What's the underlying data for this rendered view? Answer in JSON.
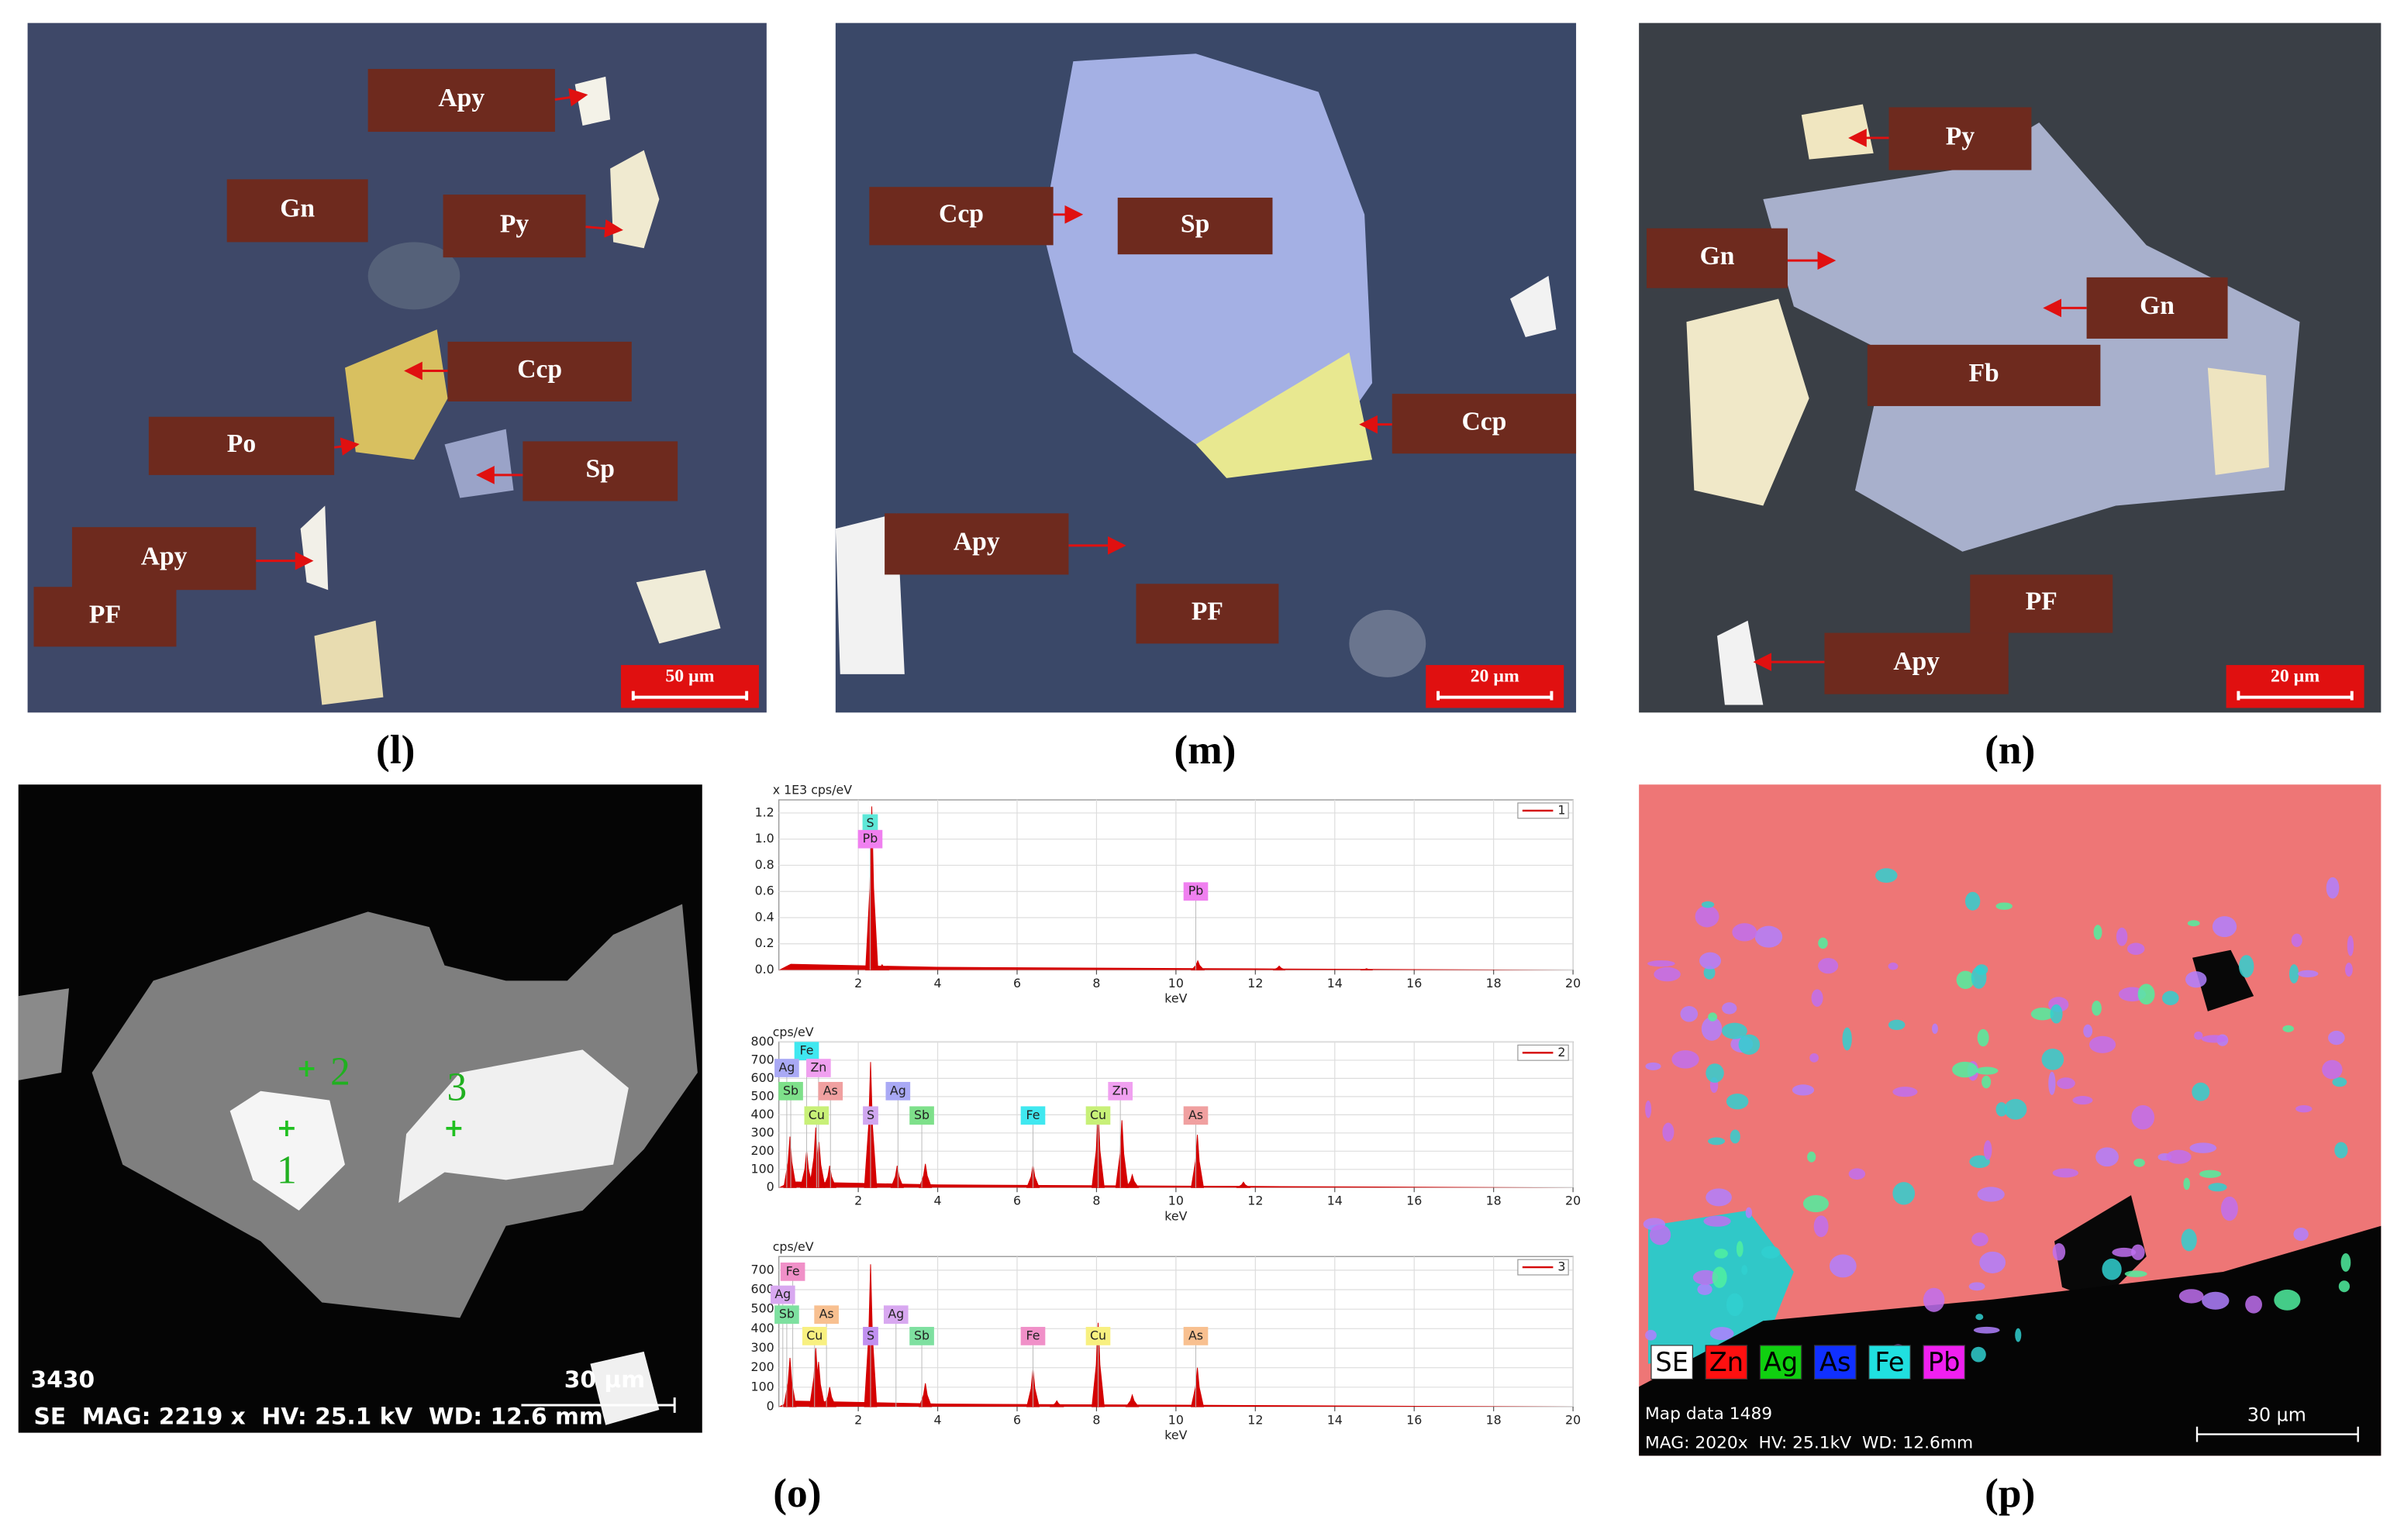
{
  "panels": [
    {
      "caption": "(l)",
      "labels": [
        "Apy",
        "Gn",
        "Py",
        "Ccp",
        "Po",
        "Sp",
        "Apy",
        "PF"
      ],
      "scale_bar": "50 µm"
    },
    {
      "caption": "(m)",
      "labels": [
        "Ccp",
        "Sp",
        "Ccp",
        "Apy",
        "PF"
      ],
      "scale_bar": "20 µm"
    },
    {
      "caption": "(n)",
      "labels": [
        "Py",
        "Gn",
        "Gn",
        "Fb",
        "PF",
        "Apy"
      ],
      "scale_bar": "20 µm"
    }
  ],
  "sem": {
    "caption": "(o)",
    "points": [
      "1",
      "2",
      "3"
    ],
    "id": "3430",
    "scale_bar": "30 µm",
    "info": "SE  MAG: 2219 x  HV: 25.1 kV  WD: 12.6 mm"
  },
  "chart_data": [
    {
      "type": "spectrum",
      "y_unit": "x 1E3 cps/eV",
      "xlabel": "keV",
      "legend": "1",
      "color": "#d40000",
      "x": [
        2.34,
        2.6,
        10.55,
        12.6,
        14.8
      ],
      "values": [
        1.25,
        0.04,
        0.07,
        0.03,
        0.01
      ],
      "xlim": [
        0,
        20
      ],
      "xticks": [
        2,
        4,
        6,
        8,
        10,
        12,
        14,
        16,
        18,
        20
      ],
      "ylim": [
        0,
        1.3
      ],
      "yticks": [
        {
          "value": 0,
          "label": "0.0"
        },
        0.2,
        0.4,
        0.6,
        0.8,
        {
          "value": 1,
          "label": "1.0"
        },
        1.2
      ],
      "grid": true,
      "peak_labels": [
        {
          "text": "S",
          "x": 2.3,
          "y": 1.12,
          "color": "#5ee8d8"
        },
        {
          "text": "Pb",
          "x": 2.3,
          "y": 1.0,
          "color": "#f080f0"
        },
        {
          "text": "Pb",
          "x": 10.5,
          "y": 0.6,
          "color": "#f080f0"
        }
      ]
    },
    {
      "type": "spectrum",
      "y_unit": "cps/eV",
      "xlabel": "keV",
      "legend": "2",
      "color": "#d40000",
      "x": [
        0.28,
        0.7,
        0.93,
        1.01,
        1.28,
        2.31,
        2.98,
        3.69,
        6.4,
        8.04,
        8.64,
        8.9,
        10.54,
        11.7
      ],
      "values": [
        280,
        200,
        330,
        250,
        120,
        690,
        120,
        130,
        120,
        410,
        370,
        70,
        290,
        30
      ],
      "xlim": [
        0,
        20
      ],
      "xticks": [
        2,
        4,
        6,
        8,
        10,
        12,
        14,
        16,
        18,
        20
      ],
      "ylim": [
        0,
        800
      ],
      "yticks": [
        0,
        100,
        200,
        300,
        400,
        500,
        600,
        700,
        800
      ],
      "grid": true,
      "peak_labels": [
        {
          "text": "Fe",
          "x": 0.7,
          "y": 750,
          "color": "#40e8f0"
        },
        {
          "text": "Ag",
          "x": 0.2,
          "y": 657,
          "color": "#a9a9f5"
        },
        {
          "text": "Zn",
          "x": 1.0,
          "y": 657,
          "color": "#f0a0f0"
        },
        {
          "text": "Sb",
          "x": 0.3,
          "y": 530,
          "color": "#7ee08a"
        },
        {
          "text": "As",
          "x": 1.3,
          "y": 530,
          "color": "#f0a0a0"
        },
        {
          "text": "Ag",
          "x": 3.0,
          "y": 530,
          "color": "#a9a9f5"
        },
        {
          "text": "Zn",
          "x": 8.6,
          "y": 530,
          "color": "#f0a0f0"
        },
        {
          "text": "Cu",
          "x": 0.95,
          "y": 396,
          "color": "#c8f078"
        },
        {
          "text": "S",
          "x": 2.31,
          "y": 396,
          "color": "#d0a8f0"
        },
        {
          "text": "Sb",
          "x": 3.6,
          "y": 396,
          "color": "#7ee08a"
        },
        {
          "text": "Fe",
          "x": 6.4,
          "y": 396,
          "color": "#40e8f0"
        },
        {
          "text": "Cu",
          "x": 8.04,
          "y": 396,
          "color": "#c8f078"
        },
        {
          "text": "As",
          "x": 10.5,
          "y": 396,
          "color": "#f0a0a0"
        }
      ]
    },
    {
      "type": "spectrum",
      "y_unit": "cps/eV",
      "xlabel": "keV",
      "legend": "3",
      "color": "#d40000",
      "x": [
        0.28,
        0.93,
        1.0,
        1.28,
        2.31,
        3.69,
        6.4,
        7.0,
        8.04,
        8.9,
        10.54
      ],
      "values": [
        250,
        300,
        230,
        100,
        730,
        120,
        190,
        30,
        430,
        60,
        200
      ],
      "xlim": [
        0,
        20
      ],
      "xticks": [
        2,
        4,
        6,
        8,
        10,
        12,
        14,
        16,
        18,
        20
      ],
      "ylim": [
        0,
        770
      ],
      "yticks": [
        0,
        100,
        200,
        300,
        400,
        500,
        600,
        700
      ],
      "grid": true,
      "peak_labels": [
        {
          "text": "Fe",
          "x": 0.35,
          "y": 692,
          "color": "#f090c8"
        },
        {
          "text": "Ag",
          "x": 0.1,
          "y": 574,
          "color": "#d8a8f0"
        },
        {
          "text": "Sb",
          "x": 0.2,
          "y": 472,
          "color": "#7ee0a0"
        },
        {
          "text": "As",
          "x": 1.2,
          "y": 472,
          "color": "#f8c090"
        },
        {
          "text": "Ag",
          "x": 2.95,
          "y": 472,
          "color": "#d8a8f0"
        },
        {
          "text": "Cu",
          "x": 0.9,
          "y": 362,
          "color": "#f8f080"
        },
        {
          "text": "S",
          "x": 2.31,
          "y": 362,
          "color": "#c090f0"
        },
        {
          "text": "Sb",
          "x": 3.6,
          "y": 362,
          "color": "#7ee0a0"
        },
        {
          "text": "Fe",
          "x": 6.4,
          "y": 362,
          "color": "#f090c8"
        },
        {
          "text": "Cu",
          "x": 8.04,
          "y": 362,
          "color": "#f8f080"
        },
        {
          "text": "As",
          "x": 10.5,
          "y": 362,
          "color": "#f8c090"
        }
      ]
    }
  ],
  "map": {
    "caption": "(p)",
    "legend": [
      {
        "name": "SE",
        "color": "#ffffff"
      },
      {
        "name": "Zn",
        "color": "#ff1010"
      },
      {
        "name": "Ag",
        "color": "#10d010"
      },
      {
        "name": "As",
        "color": "#1030ff"
      },
      {
        "name": "Fe",
        "color": "#20e0e0"
      },
      {
        "name": "Pb",
        "color": "#f020f0"
      }
    ],
    "info": [
      "Map data 1489",
      "MAG: 2020x  HV: 25.1kV  WD: 12.6mm"
    ],
    "scale_bar": "30 µm"
  }
}
